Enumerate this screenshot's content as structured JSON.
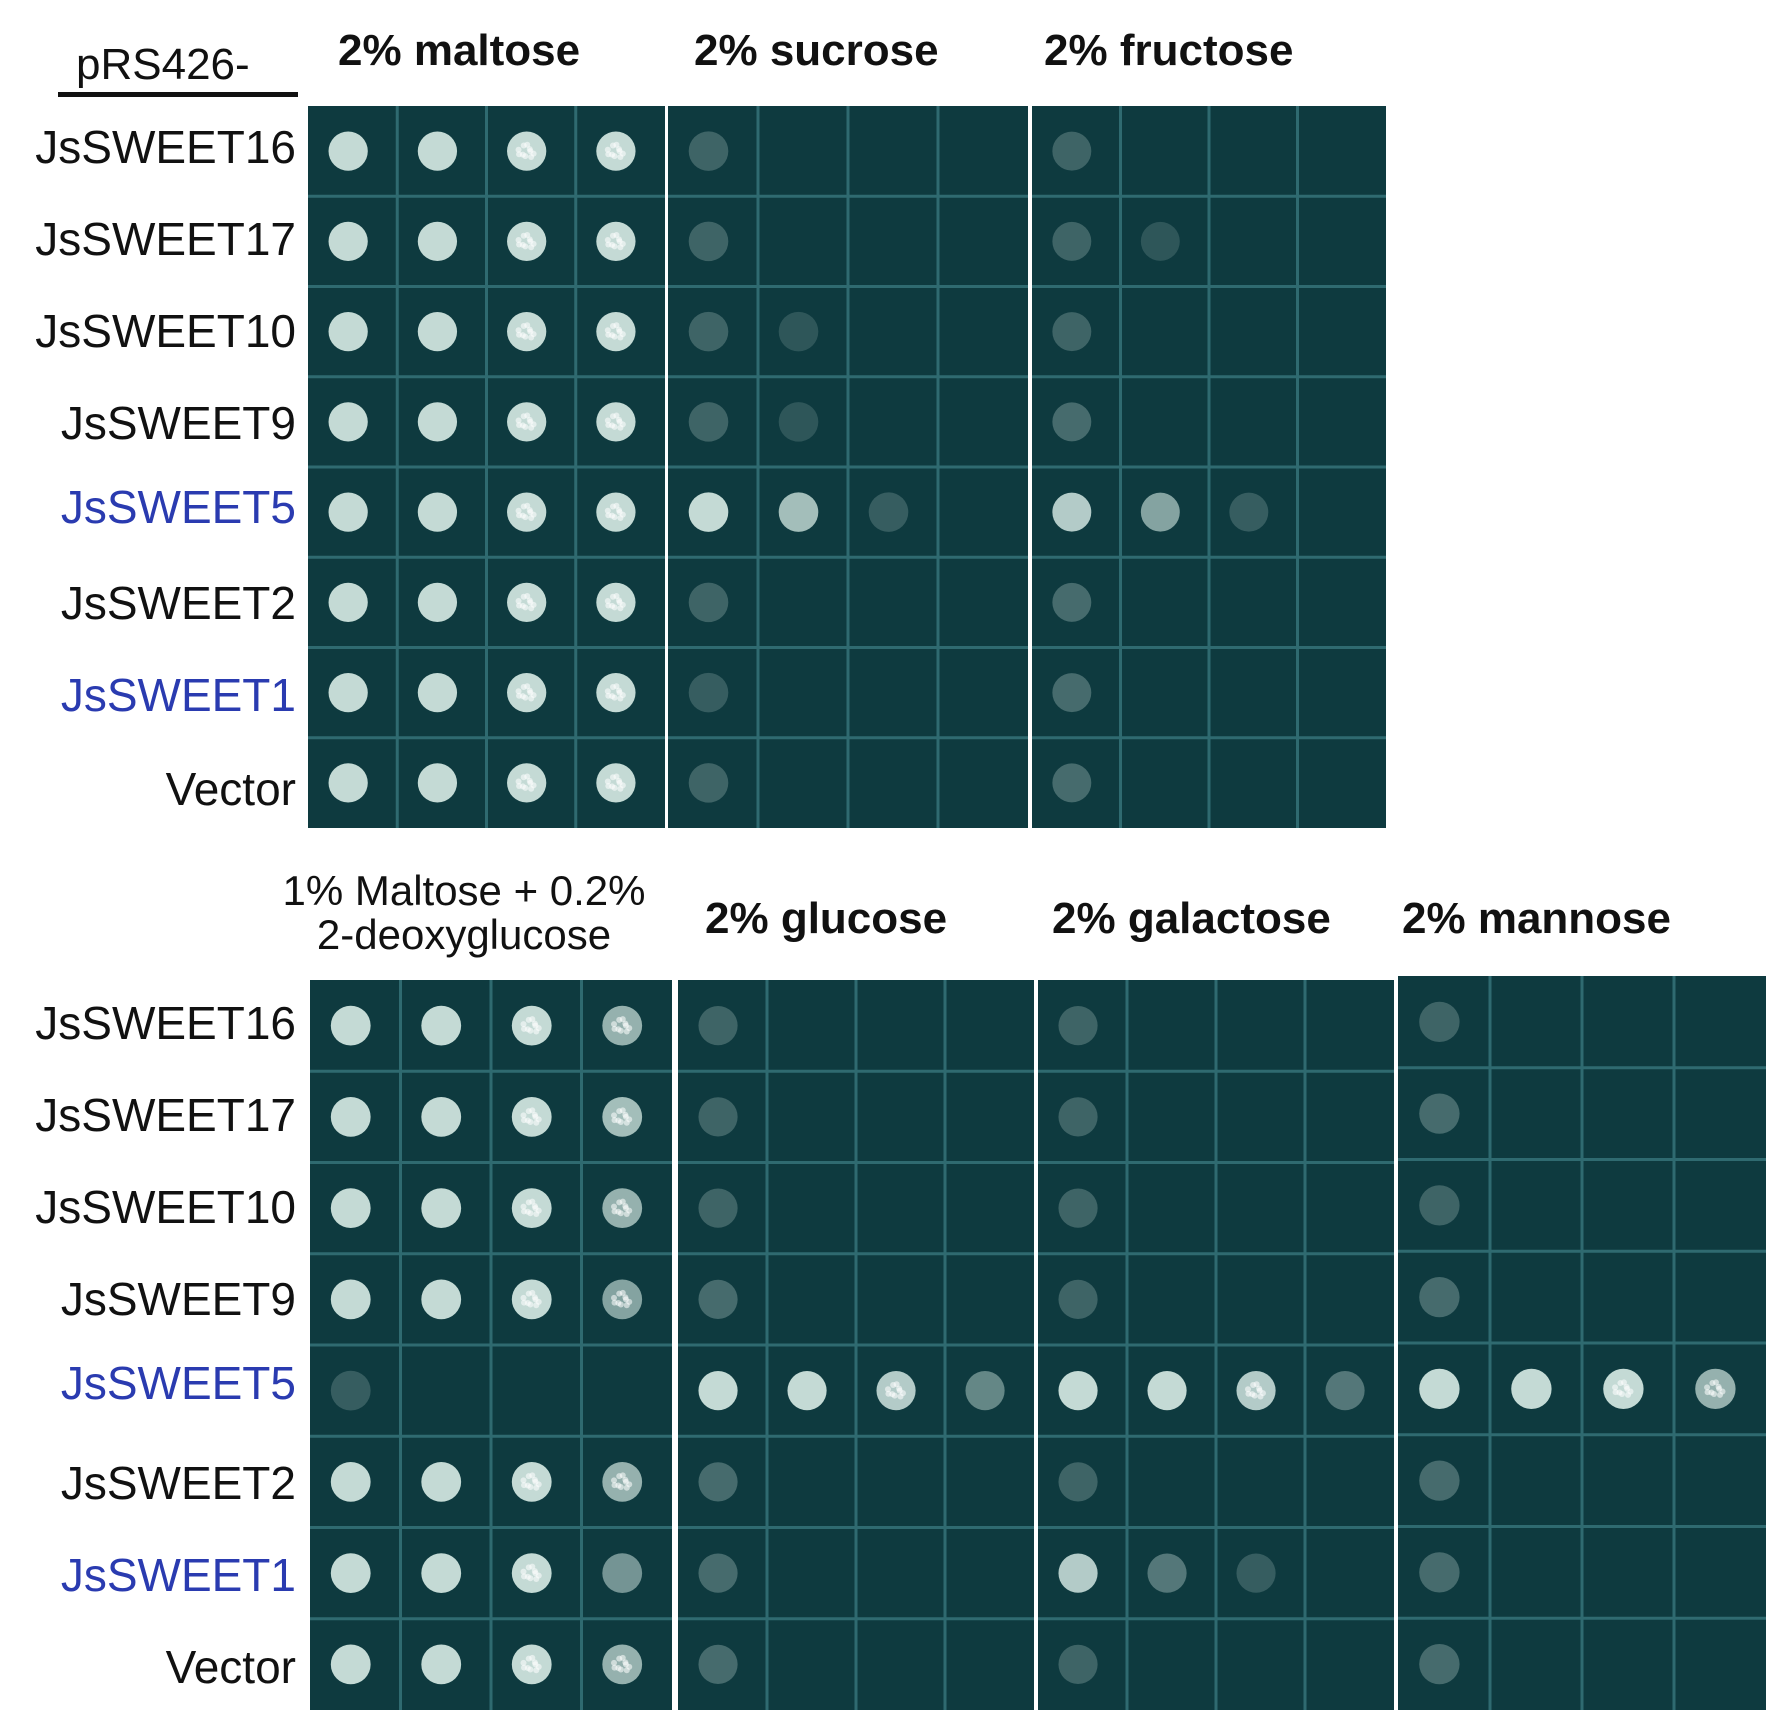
{
  "prefix": "pRS426-",
  "rows": [
    "JsSWEET16",
    "JsSWEET17",
    "JsSWEET10",
    "JsSWEET9",
    "JsSWEET5",
    "JsSWEET2",
    "JsSWEET1",
    "Vector"
  ],
  "highlight_rows": [
    "JsSWEET5",
    "JsSWEET1"
  ],
  "colors": {
    "plate": "#0e3a3f",
    "grid": "#2f6a70",
    "colony": "#d8ece6",
    "highlight_text": "#2a3bb0"
  },
  "top_panel": {
    "conditions": [
      "2% maltose",
      "2% sucrose",
      "2% fructose"
    ]
  },
  "bottom_panel": {
    "conditions_line1": "1% Maltose + 0.2%",
    "conditions_line2": "2-deoxyglucose",
    "conditions": [
      "2% glucose",
      "2% galactose",
      "2% mannose"
    ]
  },
  "growth": {
    "top": {
      "2% maltose": [
        [
          1,
          1,
          1,
          1
        ],
        [
          1,
          1,
          1,
          1
        ],
        [
          1,
          1,
          1,
          1
        ],
        [
          1,
          1,
          1,
          1
        ],
        [
          1,
          1,
          1,
          1
        ],
        [
          1,
          1,
          1,
          1
        ],
        [
          1,
          1,
          1,
          1
        ],
        [
          1,
          1,
          1,
          1
        ]
      ],
      "2% sucrose": [
        [
          0.15,
          0,
          0,
          0
        ],
        [
          0.15,
          0,
          0,
          0
        ],
        [
          0.15,
          0.05,
          0,
          0
        ],
        [
          0.15,
          0.05,
          0,
          0
        ],
        [
          1,
          0.8,
          0.1,
          0
        ],
        [
          0.15,
          0,
          0,
          0
        ],
        [
          0.1,
          0,
          0,
          0
        ],
        [
          0.15,
          0,
          0,
          0
        ]
      ],
      "2% fructose": [
        [
          0.15,
          0,
          0,
          0
        ],
        [
          0.15,
          0.05,
          0,
          0
        ],
        [
          0.15,
          0,
          0,
          0
        ],
        [
          0.2,
          0,
          0,
          0
        ],
        [
          0.9,
          0.6,
          0.1,
          0
        ],
        [
          0.2,
          0,
          0,
          0
        ],
        [
          0.2,
          0,
          0,
          0
        ],
        [
          0.2,
          0,
          0,
          0
        ]
      ]
    },
    "bottom": {
      "1% Maltose + 0.2% 2-deoxyglucose": [
        [
          1,
          1,
          1,
          0.7
        ],
        [
          1,
          1,
          1,
          0.8
        ],
        [
          1,
          1,
          1,
          0.7
        ],
        [
          1,
          1,
          1,
          0.6
        ],
        [
          0.1,
          0,
          0,
          0
        ],
        [
          1,
          1,
          1,
          0.7
        ],
        [
          1,
          1,
          1,
          0.5
        ],
        [
          1,
          1,
          1,
          0.7
        ]
      ],
      "2% glucose": [
        [
          0.15,
          0,
          0,
          0
        ],
        [
          0.15,
          0,
          0,
          0
        ],
        [
          0.15,
          0,
          0,
          0
        ],
        [
          0.2,
          0,
          0,
          0
        ],
        [
          1,
          1,
          0.9,
          0.4
        ],
        [
          0.2,
          0,
          0,
          0
        ],
        [
          0.2,
          0,
          0,
          0
        ],
        [
          0.2,
          0,
          0,
          0
        ]
      ],
      "2% galactose": [
        [
          0.15,
          0,
          0,
          0
        ],
        [
          0.15,
          0,
          0,
          0
        ],
        [
          0.15,
          0,
          0,
          0
        ],
        [
          0.15,
          0,
          0,
          0
        ],
        [
          1,
          1,
          0.9,
          0.3
        ],
        [
          0.15,
          0,
          0,
          0
        ],
        [
          0.9,
          0.3,
          0.1,
          0
        ],
        [
          0.15,
          0,
          0,
          0
        ]
      ],
      "2% mannose": [
        [
          0.15,
          0,
          0,
          0
        ],
        [
          0.2,
          0,
          0,
          0
        ],
        [
          0.15,
          0,
          0,
          0
        ],
        [
          0.2,
          0,
          0,
          0
        ],
        [
          1,
          1,
          1,
          0.7
        ],
        [
          0.2,
          0,
          0,
          0
        ],
        [
          0.2,
          0,
          0,
          0
        ],
        [
          0.2,
          0,
          0,
          0
        ]
      ]
    }
  }
}
